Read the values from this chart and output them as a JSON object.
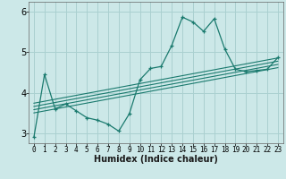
{
  "xlabel": "Humidex (Indice chaleur)",
  "ylabel": "",
  "bg_color": "#cce8e8",
  "grid_color": "#aad0d0",
  "line_color": "#1a7a6e",
  "xlim": [
    -0.5,
    23.5
  ],
  "ylim": [
    2.75,
    6.25
  ],
  "yticks": [
    3,
    4,
    5,
    6
  ],
  "xticks": [
    0,
    1,
    2,
    3,
    4,
    5,
    6,
    7,
    8,
    9,
    10,
    11,
    12,
    13,
    14,
    15,
    16,
    17,
    18,
    19,
    20,
    21,
    22,
    23
  ],
  "main_x": [
    0,
    1,
    2,
    3,
    4,
    5,
    6,
    7,
    8,
    9,
    10,
    11,
    12,
    13,
    14,
    15,
    16,
    17,
    18,
    19,
    20,
    21,
    22,
    23
  ],
  "main_y": [
    2.9,
    4.45,
    3.6,
    3.72,
    3.55,
    3.38,
    3.32,
    3.22,
    3.05,
    3.48,
    4.32,
    4.6,
    4.65,
    5.17,
    5.87,
    5.75,
    5.52,
    5.83,
    5.08,
    4.58,
    4.52,
    4.55,
    4.58,
    4.87
  ],
  "ref_lines": [
    {
      "x": [
        0,
        23
      ],
      "y": [
        3.5,
        4.62
      ]
    },
    {
      "x": [
        0,
        23
      ],
      "y": [
        3.58,
        4.7
      ]
    },
    {
      "x": [
        0,
        23
      ],
      "y": [
        3.66,
        4.78
      ]
    },
    {
      "x": [
        0,
        23
      ],
      "y": [
        3.74,
        4.86
      ]
    }
  ],
  "xlabel_fontsize": 7,
  "tick_fontsize": 5.5,
  "ytick_fontsize": 7
}
